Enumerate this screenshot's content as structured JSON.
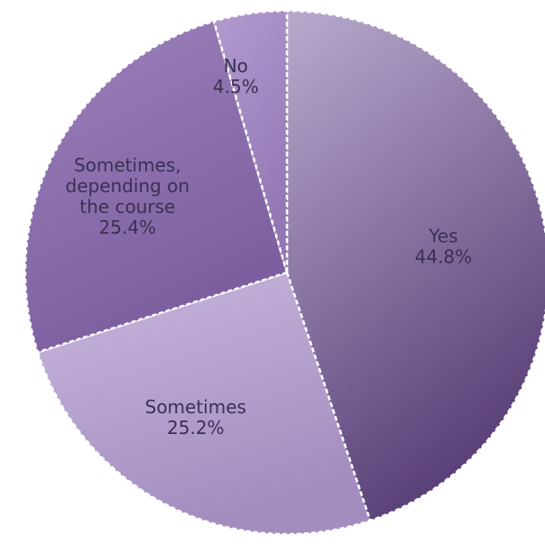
{
  "chart_data": {
    "type": "pie",
    "title": "",
    "labels": [
      "Yes",
      "Sometimes",
      "Sometimes, depending on the course",
      "No"
    ],
    "label_lines": [
      [
        "Yes",
        "44.8%"
      ],
      [
        "Sometimes",
        "25.2%"
      ],
      [
        "Sometimes,",
        "depending on",
        "the course",
        "25.4%"
      ],
      [
        "No",
        "4.5%"
      ]
    ],
    "values": [
      44.8,
      25.2,
      25.4,
      4.5
    ],
    "start_angle_deg": 0,
    "direction": "clockwise",
    "legend": "none",
    "colors": [
      "#5a4078",
      "#a38dc0",
      "#7b5d9e",
      "#9377b5"
    ],
    "colors_light": [
      "#b8aacd",
      "#c9b8dd",
      "#9c82bc",
      "#b29bd0"
    ]
  }
}
